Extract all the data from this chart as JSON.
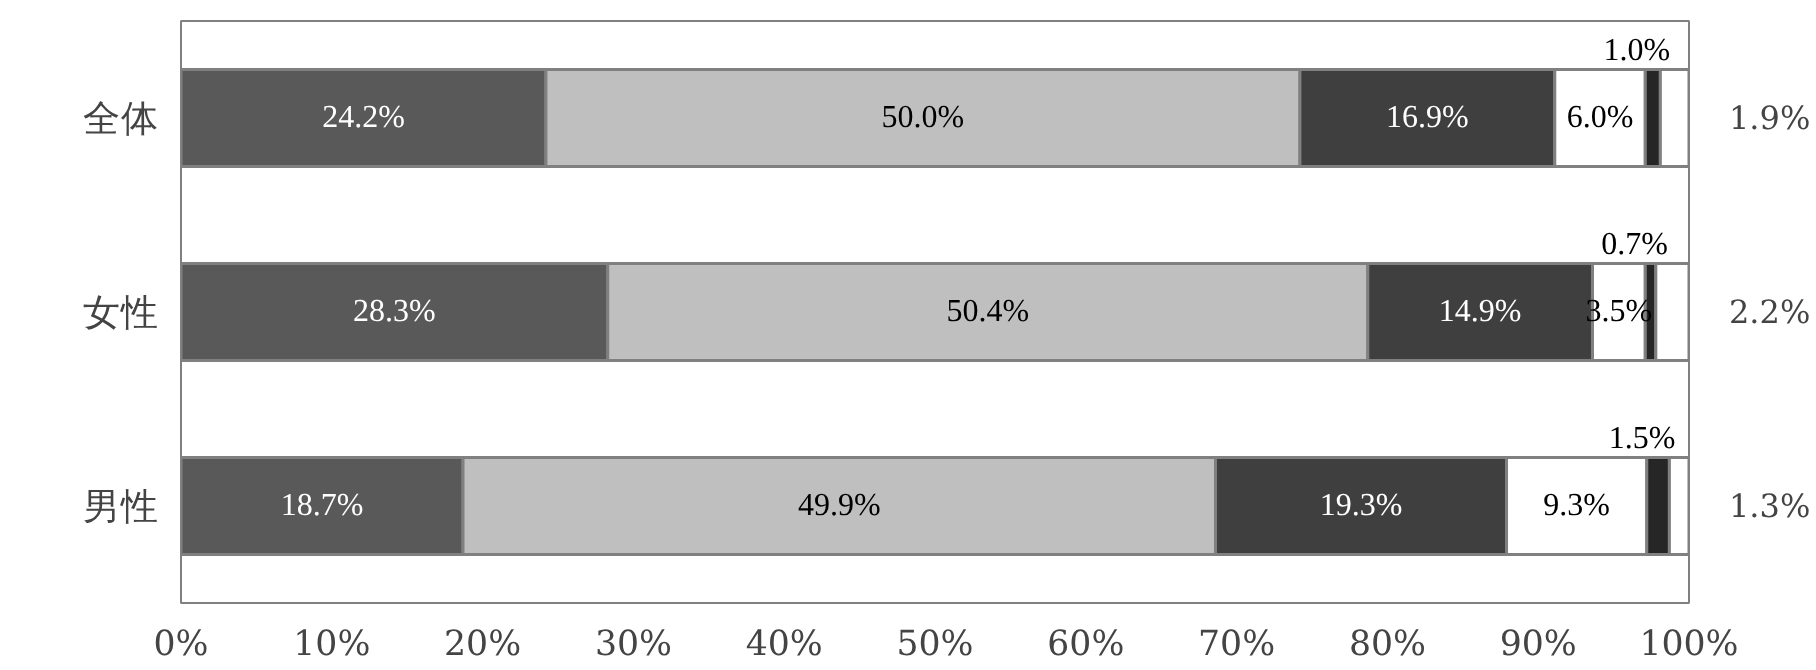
{
  "chart_data": {
    "type": "bar",
    "orientation": "horizontal",
    "stacked": true,
    "categories": [
      "全体",
      "女性",
      "男性"
    ],
    "series": [
      {
        "color": "#595959",
        "values": [
          24.2,
          28.3,
          18.7
        ],
        "value_labels": [
          "24.2%",
          "28.3%",
          "18.7%"
        ]
      },
      {
        "color": "#bfbfbf",
        "values": [
          50.0,
          50.4,
          49.9
        ],
        "value_labels": [
          "50.0%",
          "50.4%",
          "49.9%"
        ]
      },
      {
        "color": "#3f3f3f",
        "values": [
          16.9,
          14.9,
          19.3
        ],
        "value_labels": [
          "16.9%",
          "14.9%",
          "19.3%"
        ]
      },
      {
        "color": "#ffffff",
        "values": [
          6.0,
          3.5,
          9.3
        ],
        "value_labels": [
          "6.0%",
          "3.5%",
          "9.3%"
        ]
      },
      {
        "color": "#262626",
        "values": [
          1.0,
          0.7,
          1.5
        ],
        "value_labels": [
          "1.0%",
          "0.7%",
          "1.5%"
        ]
      },
      {
        "color": "#ffffff",
        "values": [
          1.9,
          2.2,
          1.3
        ],
        "value_labels": [
          "1.9%",
          "2.2%",
          "1.3%"
        ]
      }
    ],
    "xlim": [
      0,
      100
    ],
    "xticks": [
      {
        "value": 0,
        "label": "0%"
      },
      {
        "value": 10,
        "label": "10%"
      },
      {
        "value": 20,
        "label": "20%"
      },
      {
        "value": 30,
        "label": "30%"
      },
      {
        "value": 40,
        "label": "40%"
      },
      {
        "value": 50,
        "label": "50%"
      },
      {
        "value": 60,
        "label": "60%"
      },
      {
        "value": 70,
        "label": "70%"
      },
      {
        "value": 80,
        "label": "80%"
      },
      {
        "value": 90,
        "label": "90%"
      },
      {
        "value": 100,
        "label": "100%"
      }
    ],
    "grid": false
  }
}
